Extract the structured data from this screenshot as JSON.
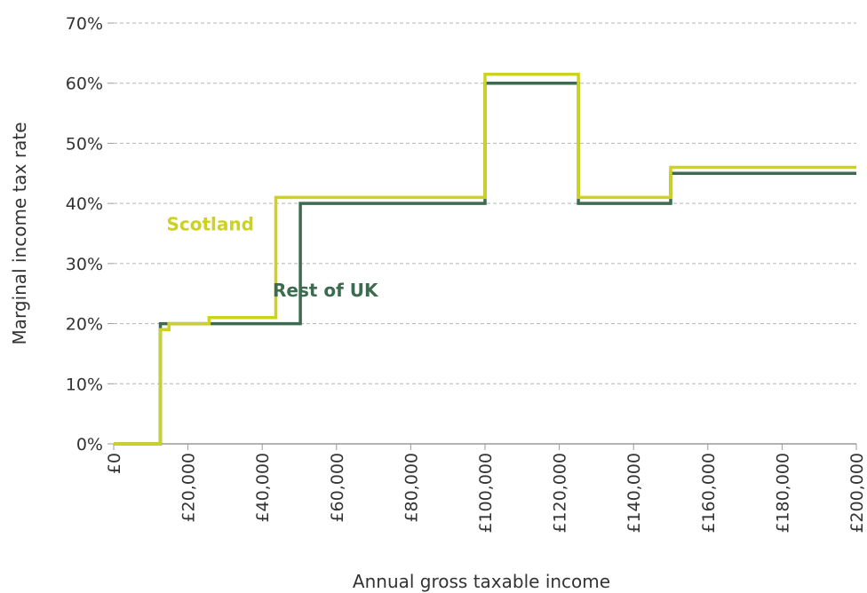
{
  "chart_data": {
    "type": "line",
    "step": true,
    "xlabel": "Annual gross taxable income",
    "ylabel": "Marginal income tax rate",
    "xlim": [
      0,
      200000
    ],
    "ylim": [
      0,
      70
    ],
    "x_ticks": [
      0,
      20000,
      40000,
      60000,
      80000,
      100000,
      120000,
      140000,
      160000,
      180000,
      200000
    ],
    "x_tick_labels": [
      "£0",
      "£20,000",
      "£40,000",
      "£60,000",
      "£80,000",
      "£100,000",
      "£120,000",
      "£140,000",
      "£160,000",
      "£180,000",
      "£200,000"
    ],
    "y_ticks": [
      0,
      10,
      20,
      30,
      40,
      50,
      60,
      70
    ],
    "y_tick_labels": [
      "0%",
      "10%",
      "20%",
      "30%",
      "40%",
      "50%",
      "60%",
      "70%"
    ],
    "grid": "horizontal dashed",
    "series": [
      {
        "name": "Rest of UK",
        "color": "#3d6b4f",
        "points": [
          [
            0,
            0
          ],
          [
            12570,
            0
          ],
          [
            12570,
            20
          ],
          [
            50270,
            20
          ],
          [
            50270,
            40
          ],
          [
            100000,
            40
          ],
          [
            100000,
            60
          ],
          [
            125140,
            60
          ],
          [
            125140,
            40
          ],
          [
            150000,
            40
          ],
          [
            150000,
            45
          ],
          [
            200000,
            45
          ]
        ]
      },
      {
        "name": "Scotland",
        "color": "#cdd21f",
        "points": [
          [
            0,
            0
          ],
          [
            12570,
            0
          ],
          [
            12570,
            19
          ],
          [
            14876,
            19
          ],
          [
            14876,
            20
          ],
          [
            25688,
            20
          ],
          [
            25688,
            21
          ],
          [
            43662,
            21
          ],
          [
            43662,
            41
          ],
          [
            100000,
            41
          ],
          [
            100000,
            61.5
          ],
          [
            125140,
            61.5
          ],
          [
            125140,
            41
          ],
          [
            150000,
            41
          ],
          [
            150000,
            46
          ],
          [
            200000,
            46
          ]
        ]
      }
    ],
    "annotations": [
      {
        "text": "Scotland",
        "series": "Scotland",
        "x": 26000,
        "y": 35.5
      },
      {
        "text": "Rest of UK",
        "series": "Rest of UK",
        "x": 57000,
        "y": 24.5
      }
    ]
  }
}
